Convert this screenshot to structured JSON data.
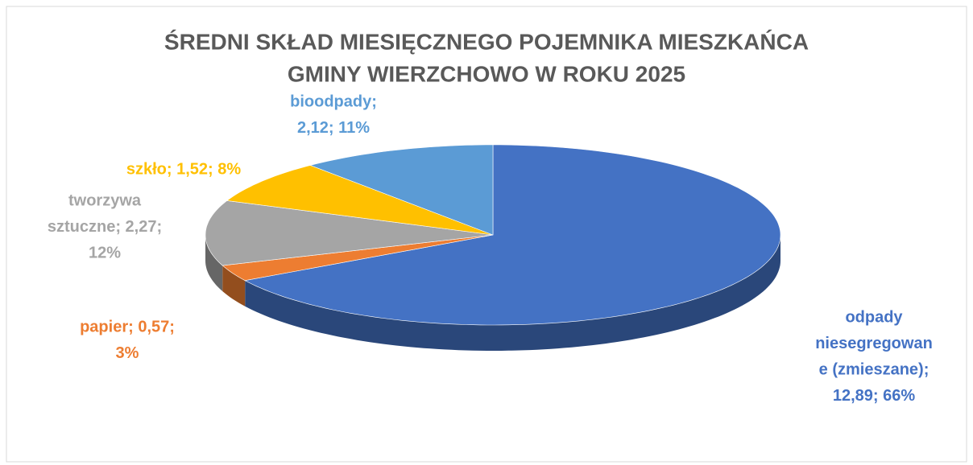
{
  "chart_data": {
    "type": "pie3d",
    "title": [
      "ŚREDNI SKŁAD MIESIĘCZNEGO POJEMNIKA MIESZKAŃCA",
      "GMINY WIERZCHOWO W ROKU 2025"
    ],
    "values": [
      12.89,
      0.57,
      2.27,
      1.52,
      2.12
    ],
    "value_labels": [
      [
        "odpady",
        "niesegregowan",
        "e (zmieszane);",
        "12,89; 66%"
      ],
      [
        "papier; 0,57;",
        "3%"
      ],
      [
        "tworzywa",
        "sztuczne; 2,27;",
        "12%"
      ],
      [
        "szkło; 1,52; 8%"
      ],
      [
        "bioodpady;",
        "2,12; 11%"
      ]
    ],
    "colors": [
      "#4472c4",
      "#ed7d31",
      "#a5a5a5",
      "#ffc000",
      "#5b9bd5"
    ],
    "start_angle": 0,
    "direction": "clockwise"
  }
}
